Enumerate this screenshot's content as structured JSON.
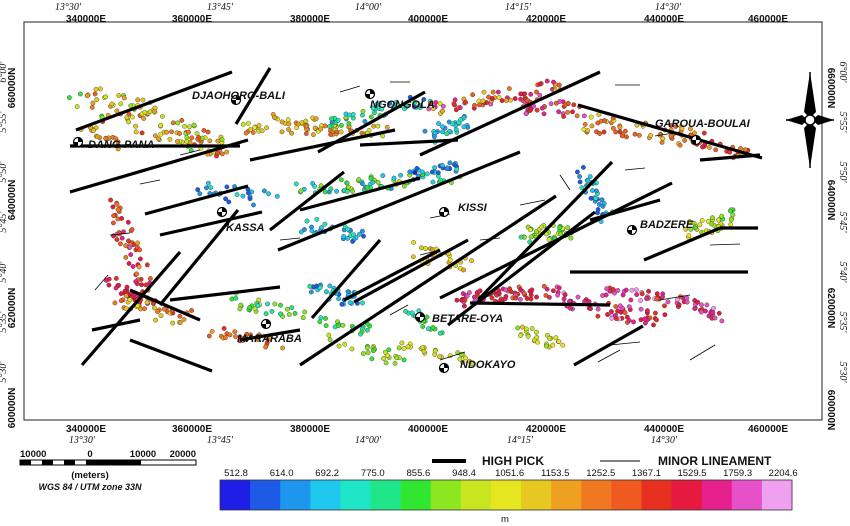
{
  "map": {
    "x_ticks": [
      "340000E",
      "360000E",
      "380000E",
      "400000E",
      "420000E",
      "440000E",
      "460000E"
    ],
    "y_ticks": [
      "660000N",
      "640000N",
      "620000N",
      "600000N"
    ],
    "lon_labels": [
      "13°30'",
      "13°45'",
      "14°00'",
      "14°15'",
      "14°30'"
    ],
    "lat_labels": [
      "6°00'",
      "5°55'",
      "5°50'",
      "5°45'",
      "5°40'",
      "5°35'",
      "5°30'"
    ],
    "towns": [
      {
        "name": "DJAOHORO-BALI"
      },
      {
        "name": "DANG-PANA"
      },
      {
        "name": "NGONGOLA"
      },
      {
        "name": "GAROUA-BOULAI"
      },
      {
        "name": "KISSI"
      },
      {
        "name": "KASSA"
      },
      {
        "name": "BADZERE"
      },
      {
        "name": "BETARE-OYA"
      },
      {
        "name": "MARARABA"
      },
      {
        "name": "NDOKAYO"
      }
    ]
  },
  "legend": {
    "high_pick": "HIGH PICK",
    "minor_lineament": "MINOR LINEAMENT"
  },
  "scalebar": {
    "labels": [
      "10000",
      "0",
      "10000",
      "20000"
    ],
    "units": "(meters)",
    "projection": "WGS 84 / UTM zone 33N"
  },
  "colorbar": {
    "values": [
      "512.8",
      "614.0",
      "692.2",
      "775.0",
      "855.6",
      "948.4",
      "1051.6",
      "1153.5",
      "1252.5",
      "1367.1",
      "1529.5",
      "1759.3",
      "2204.6"
    ],
    "colors": [
      "#1e1ee6",
      "#1e5ae6",
      "#1e96ee",
      "#20c8ee",
      "#20e6c8",
      "#20e68a",
      "#30e630",
      "#8ce620",
      "#c8e620",
      "#e6e620",
      "#e6c820",
      "#f0a020",
      "#f07820",
      "#f05a20",
      "#e63020",
      "#e61a40",
      "#e6208c",
      "#e650c8",
      "#f0a0f0"
    ],
    "unit": "m"
  }
}
